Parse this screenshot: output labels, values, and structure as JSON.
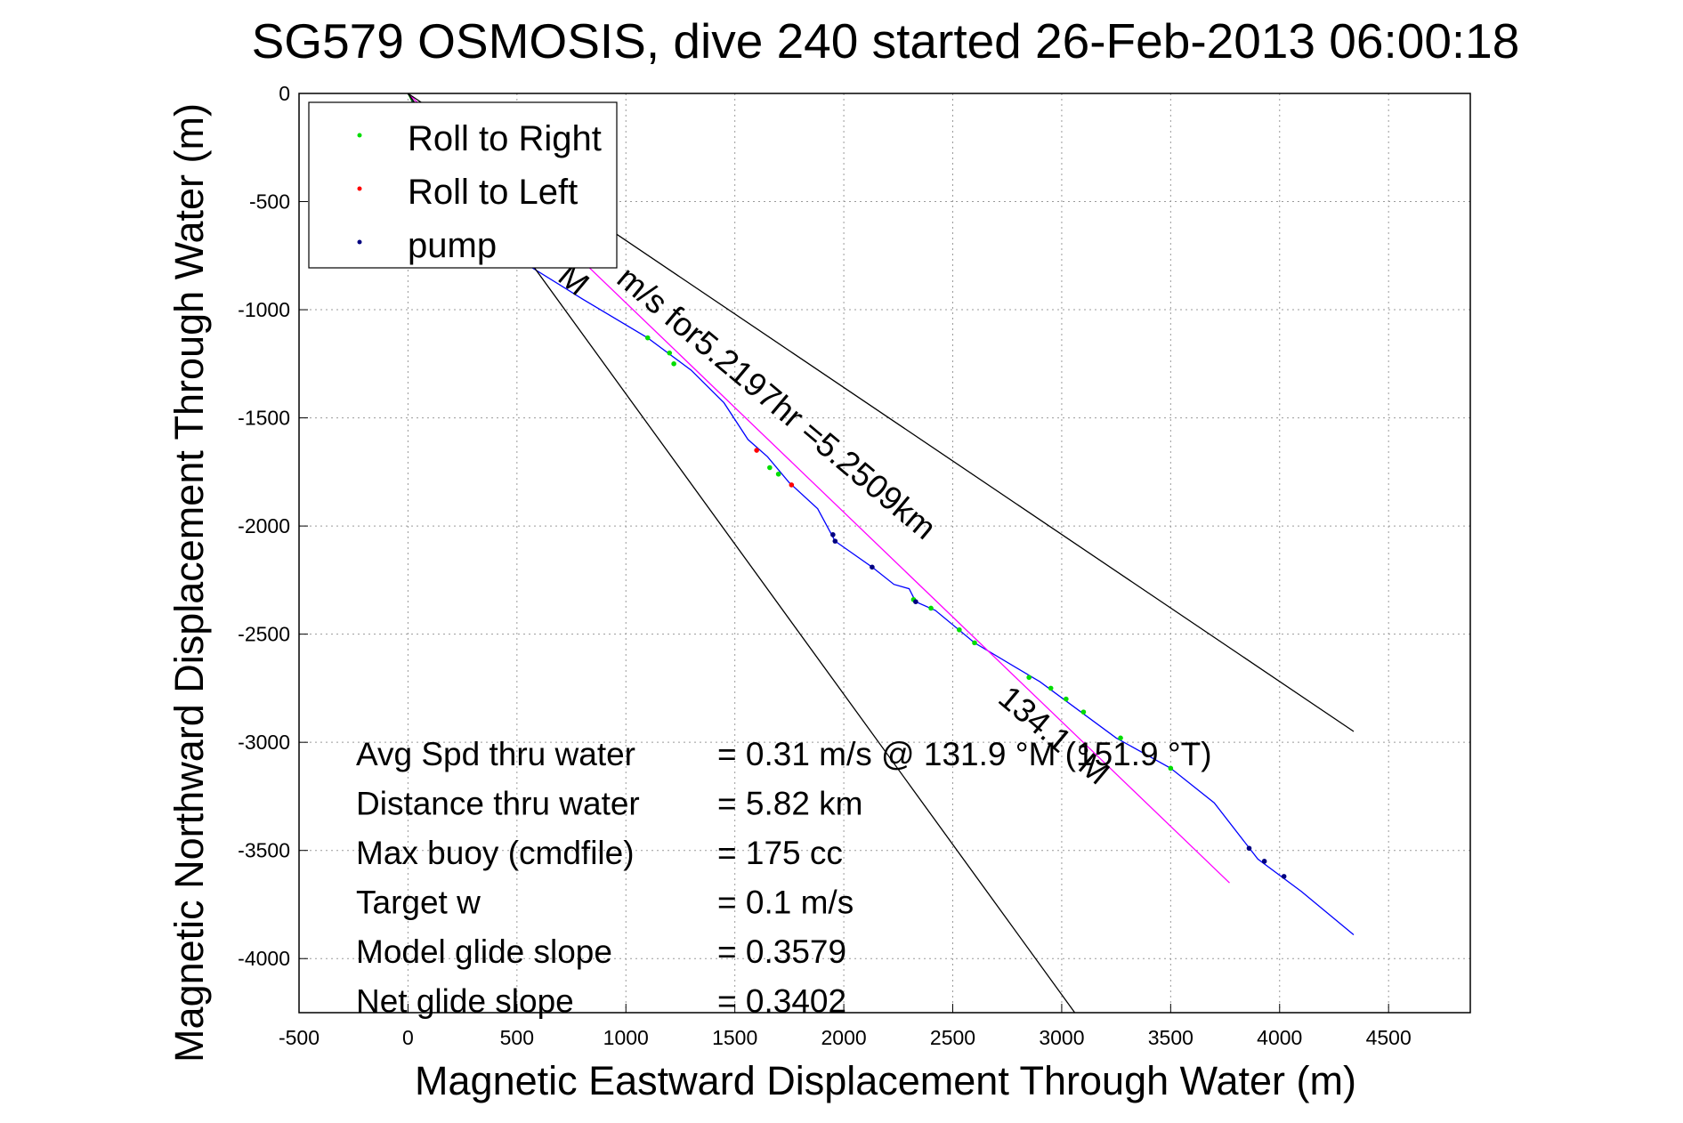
{
  "chart_data": {
    "type": "line",
    "title": "SG579 OSMOSIS, dive 240 started 26-Feb-2013 06:00:18",
    "xlabel": "Magnetic Eastward Displacement Through Water (m)",
    "ylabel": "Magnetic Northward Displacement Through Water (m)",
    "xlim": [
      -500,
      4875
    ],
    "ylim": [
      -4250,
      0
    ],
    "xticks": [
      -500,
      0,
      500,
      1000,
      1500,
      2000,
      2500,
      3000,
      3500,
      4000,
      4500
    ],
    "yticks": [
      0,
      -500,
      -1000,
      -1500,
      -2000,
      -2500,
      -3000,
      -3500,
      -4000
    ],
    "grid": true,
    "legend": {
      "position": "top-left",
      "entries": [
        {
          "name": "Roll to Right",
          "color": "#00dd00"
        },
        {
          "name": "Roll to Left",
          "color": "#ff0000"
        },
        {
          "name": "pump",
          "color": "#000080"
        }
      ]
    },
    "series": [
      {
        "name": "track",
        "color": "#0000ff",
        "points": [
          [
            0,
            0
          ],
          [
            150,
            -250
          ],
          [
            350,
            -500
          ],
          [
            560,
            -800
          ],
          [
            800,
            -950
          ],
          [
            1100,
            -1130
          ],
          [
            1300,
            -1280
          ],
          [
            1450,
            -1430
          ],
          [
            1560,
            -1600
          ],
          [
            1650,
            -1680
          ],
          [
            1750,
            -1800
          ],
          [
            1880,
            -1920
          ],
          [
            1960,
            -2070
          ],
          [
            2130,
            -2190
          ],
          [
            2230,
            -2270
          ],
          [
            2300,
            -2290
          ],
          [
            2330,
            -2350
          ],
          [
            2420,
            -2390
          ],
          [
            2600,
            -2540
          ],
          [
            2900,
            -2720
          ],
          [
            3250,
            -2980
          ],
          [
            3500,
            -3120
          ],
          [
            3700,
            -3280
          ],
          [
            3900,
            -3540
          ],
          [
            4100,
            -3690
          ],
          [
            4340,
            -3890
          ]
        ],
        "markers": {
          "roll_right": [
            [
              1100,
              -1130
            ],
            [
              1200,
              -1200
            ],
            [
              1220,
              -1250
            ],
            [
              1660,
              -1730
            ],
            [
              1700,
              -1760
            ],
            [
              2320,
              -2340
            ],
            [
              2400,
              -2380
            ],
            [
              2530,
              -2480
            ],
            [
              2600,
              -2540
            ],
            [
              2850,
              -2700
            ],
            [
              2950,
              -2750
            ],
            [
              3020,
              -2800
            ],
            [
              3100,
              -2860
            ],
            [
              3270,
              -2980
            ],
            [
              3500,
              -3120
            ]
          ],
          "roll_left": [
            [
              1600,
              -1650
            ],
            [
              1760,
              -1810
            ]
          ],
          "pump": [
            [
              1950,
              -2040
            ],
            [
              1960,
              -2070
            ],
            [
              2130,
              -2190
            ],
            [
              2330,
              -2350
            ],
            [
              3860,
              -3490
            ],
            [
              3930,
              -3550
            ],
            [
              4020,
              -3620
            ]
          ]
        }
      },
      {
        "name": "dive track start",
        "color": "#008000",
        "points": [
          [
            0,
            0
          ],
          [
            30,
            -60
          ],
          [
            60,
            -100
          ]
        ]
      },
      {
        "name": "course line",
        "color": "#ff00ff",
        "points": [
          [
            0,
            0
          ],
          [
            3770,
            -3650
          ]
        ]
      },
      {
        "name": "heading bound A",
        "color": "#000000",
        "points": [
          [
            0,
            0
          ],
          [
            4340,
            -2950
          ]
        ]
      },
      {
        "name": "heading bound B",
        "color": "#000000",
        "points": [
          [
            0,
            0
          ],
          [
            3060,
            -4250
          ]
        ]
      }
    ],
    "annotations": [
      {
        "text": "M",
        "x": 680,
        "y": -860,
        "rotation": 40
      },
      {
        "text": "m/s for5.2197hr =5.2509km",
        "x": 950,
        "y": -870,
        "rotation": 40
      },
      {
        "text": "134.1 °M",
        "x": 2700,
        "y": -2810,
        "rotation": 40
      }
    ],
    "stats": [
      {
        "label": "Avg Spd thru water",
        "value": "=  0.31 m/s @ 131.9 °M (151.9 °T)"
      },
      {
        "label": "Distance thru water",
        "value": "=  5.82 km"
      },
      {
        "label": "Max buoy (cmdfile)",
        "value": "= 175 cc"
      },
      {
        "label": "Target w",
        "value": "= 0.1 m/s"
      },
      {
        "label": "Model glide slope",
        "value": "= 0.3579"
      },
      {
        "label": "Net glide slope",
        "value": "= 0.3402"
      }
    ]
  }
}
